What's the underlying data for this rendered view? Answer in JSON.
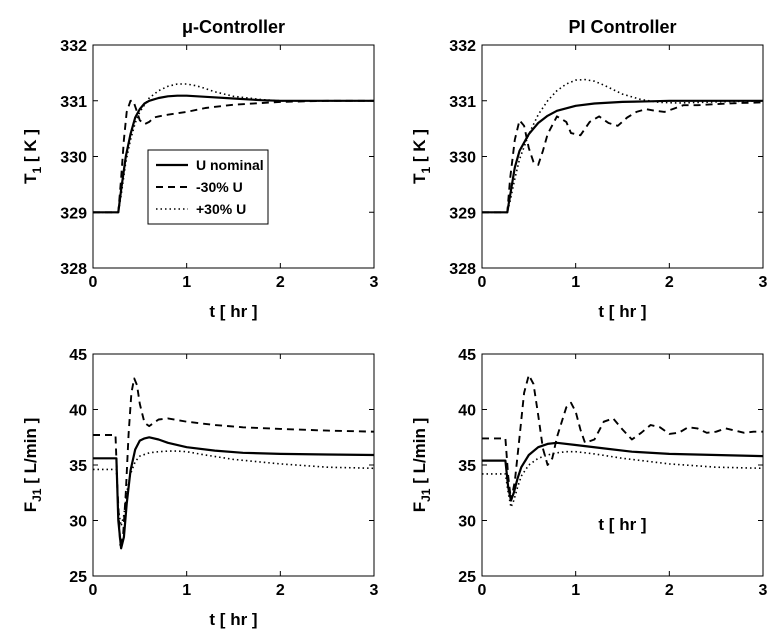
{
  "chart_data": [
    {
      "type": "line",
      "title": "μ-Controller",
      "xlabel": "t [ hr ]",
      "ylabel": "T_1 [ K ]",
      "ylabel_main": "T",
      "ylabel_sub": "1",
      "ylabel_rest": " [ K ]",
      "xlim": [
        0,
        3
      ],
      "ylim": [
        328,
        332
      ],
      "xticks": [
        "0",
        "1",
        "2",
        "3"
      ],
      "yticks": [
        "328",
        "329",
        "330",
        "331",
        "332"
      ],
      "legend": {
        "position": "center-left"
      },
      "series": [
        {
          "name": "U nominal",
          "style": "solid",
          "x": [
            0,
            0.27,
            0.3,
            0.35,
            0.4,
            0.45,
            0.5,
            0.55,
            0.6,
            0.7,
            0.8,
            0.9,
            1.0,
            1.2,
            1.5,
            1.8,
            2.0,
            2.5,
            3.0
          ],
          "y": [
            329,
            329,
            329.4,
            330.0,
            330.4,
            330.7,
            330.85,
            330.95,
            331.0,
            331.05,
            331.08,
            331.09,
            331.09,
            331.07,
            331.04,
            331.01,
            331.0,
            331.0,
            331.0
          ]
        },
        {
          "name": "-30% U",
          "style": "dashed",
          "x": [
            0,
            0.27,
            0.3,
            0.33,
            0.36,
            0.4,
            0.43,
            0.46,
            0.5,
            0.55,
            0.6,
            0.65,
            0.7,
            0.8,
            1.0,
            1.2,
            1.5,
            2.0,
            2.5,
            3.0
          ],
          "y": [
            329,
            329,
            329.6,
            330.3,
            330.8,
            331.0,
            331.0,
            330.85,
            330.65,
            330.58,
            330.62,
            330.7,
            330.72,
            330.75,
            330.8,
            330.87,
            330.93,
            330.98,
            331.0,
            331.0
          ]
        },
        {
          "name": "+30% U",
          "style": "dotted",
          "x": [
            0,
            0.27,
            0.3,
            0.35,
            0.4,
            0.45,
            0.5,
            0.6,
            0.7,
            0.8,
            0.9,
            1.0,
            1.1,
            1.2,
            1.3,
            1.5,
            1.8,
            2.0,
            2.5,
            3.0
          ],
          "y": [
            329,
            329,
            329.3,
            329.9,
            330.3,
            330.6,
            330.8,
            331.05,
            331.18,
            331.26,
            331.3,
            331.3,
            331.27,
            331.22,
            331.16,
            331.08,
            331.02,
            331.0,
            331.0,
            331.0
          ]
        }
      ]
    },
    {
      "type": "line",
      "title": "PI Controller",
      "xlabel": "t [ hr ]",
      "ylabel": "T_1 [ K ]",
      "ylabel_main": "T",
      "ylabel_sub": "1",
      "ylabel_rest": " [ K ]",
      "xlim": [
        0,
        3
      ],
      "ylim": [
        328,
        332
      ],
      "xticks": [
        "0",
        "1",
        "2",
        "3"
      ],
      "yticks": [
        "328",
        "329",
        "330",
        "331",
        "332"
      ],
      "series": [
        {
          "name": "U nominal",
          "style": "solid",
          "x": [
            0,
            0.27,
            0.3,
            0.35,
            0.4,
            0.5,
            0.6,
            0.7,
            0.8,
            1.0,
            1.2,
            1.5,
            1.8,
            2.0,
            2.5,
            3.0
          ],
          "y": [
            329,
            329,
            329.3,
            329.8,
            330.1,
            330.4,
            330.6,
            330.73,
            330.82,
            330.91,
            330.95,
            330.98,
            330.99,
            331.0,
            331.0,
            331.0
          ]
        },
        {
          "name": "-30% U",
          "style": "dashed",
          "x": [
            0,
            0.27,
            0.3,
            0.35,
            0.4,
            0.45,
            0.5,
            0.55,
            0.6,
            0.65,
            0.7,
            0.8,
            0.9,
            0.95,
            1.05,
            1.15,
            1.25,
            1.35,
            1.45,
            1.55,
            1.65,
            1.75,
            1.85,
            1.95,
            2.05,
            2.15,
            2.3,
            2.5,
            2.75,
            3.0
          ],
          "y": [
            329,
            329,
            329.6,
            330.3,
            330.65,
            330.55,
            330.15,
            329.9,
            329.85,
            330.1,
            330.4,
            330.72,
            330.62,
            330.42,
            330.38,
            330.62,
            330.72,
            330.6,
            330.55,
            330.7,
            330.8,
            330.85,
            330.82,
            330.8,
            330.86,
            330.92,
            330.92,
            330.94,
            330.96,
            330.97
          ]
        },
        {
          "name": "+30% U",
          "style": "dotted",
          "x": [
            0,
            0.27,
            0.3,
            0.35,
            0.4,
            0.5,
            0.6,
            0.7,
            0.8,
            0.9,
            1.0,
            1.1,
            1.2,
            1.3,
            1.4,
            1.5,
            1.7,
            1.9,
            2.1,
            2.5,
            3.0
          ],
          "y": [
            329,
            329,
            329.2,
            329.6,
            329.95,
            330.4,
            330.75,
            331.0,
            331.18,
            331.3,
            331.37,
            331.38,
            331.35,
            331.28,
            331.2,
            331.12,
            331.02,
            330.97,
            330.96,
            330.98,
            331.0
          ]
        }
      ]
    },
    {
      "type": "line",
      "title": "",
      "xlabel": "t [ hr ]",
      "ylabel": "F_J1 [ L/min ]",
      "ylabel_main": "F",
      "ylabel_sub": "J1",
      "ylabel_rest": " [ L/min ]",
      "xlim": [
        0,
        3
      ],
      "ylim": [
        25,
        45
      ],
      "xticks": [
        "0",
        "1",
        "2",
        "3"
      ],
      "yticks": [
        "25",
        "30",
        "35",
        "40",
        "45"
      ],
      "series": [
        {
          "name": "U nominal",
          "style": "solid",
          "x": [
            0,
            0.25,
            0.27,
            0.3,
            0.33,
            0.36,
            0.4,
            0.45,
            0.5,
            0.55,
            0.6,
            0.7,
            0.8,
            1.0,
            1.3,
            1.6,
            2.0,
            2.5,
            3.0
          ],
          "y": [
            35.6,
            35.6,
            30,
            27.5,
            28.5,
            31.5,
            34.5,
            36.4,
            37.2,
            37.4,
            37.5,
            37.3,
            37.0,
            36.6,
            36.3,
            36.1,
            36.0,
            35.95,
            35.9
          ]
        },
        {
          "name": "-30% U",
          "style": "dashed",
          "x": [
            0,
            0.24,
            0.26,
            0.29,
            0.32,
            0.35,
            0.38,
            0.41,
            0.44,
            0.47,
            0.5,
            0.55,
            0.6,
            0.65,
            0.7,
            0.8,
            1.0,
            1.3,
            1.6,
            2.0,
            2.5,
            3.0
          ],
          "y": [
            37.7,
            37.7,
            33,
            27.8,
            28.5,
            32.5,
            37.8,
            41.5,
            42.8,
            42.2,
            40.5,
            38.8,
            38.5,
            38.8,
            39.1,
            39.2,
            38.9,
            38.6,
            38.4,
            38.25,
            38.1,
            38.0
          ]
        },
        {
          "name": "+30% U",
          "style": "dotted",
          "x": [
            0,
            0.25,
            0.27,
            0.3,
            0.33,
            0.36,
            0.4,
            0.45,
            0.5,
            0.6,
            0.7,
            0.8,
            0.9,
            1.0,
            1.2,
            1.5,
            2.0,
            2.5,
            3.0
          ],
          "y": [
            34.6,
            34.6,
            31,
            29.5,
            30.5,
            32.5,
            34.2,
            35.3,
            35.8,
            36.1,
            36.2,
            36.25,
            36.25,
            36.2,
            35.9,
            35.5,
            35.1,
            34.8,
            34.7
          ]
        }
      ]
    },
    {
      "type": "line",
      "title": "",
      "xlabel": "t [ hr ]",
      "ylabel": "F_J1 [ L/min ]",
      "ylabel_main": "F",
      "ylabel_sub": "J1",
      "ylabel_rest": " [ L/min ]",
      "xlim": [
        0,
        3
      ],
      "ylim": [
        25,
        45
      ],
      "xticks": [
        "0",
        "1",
        "2",
        "3"
      ],
      "yticks": [
        "25",
        "30",
        "35",
        "40",
        "45"
      ],
      "series": [
        {
          "name": "U nominal",
          "style": "solid",
          "x": [
            0,
            0.25,
            0.28,
            0.31,
            0.34,
            0.38,
            0.42,
            0.5,
            0.6,
            0.7,
            0.8,
            1.0,
            1.3,
            1.6,
            2.0,
            2.5,
            3.0
          ],
          "y": [
            35.4,
            35.4,
            33,
            31.8,
            32.5,
            33.8,
            34.8,
            35.9,
            36.6,
            36.9,
            37.0,
            36.8,
            36.5,
            36.2,
            36.0,
            35.9,
            35.8
          ]
        },
        {
          "name": "-30% U",
          "style": "dashed",
          "x": [
            0,
            0.25,
            0.28,
            0.31,
            0.35,
            0.4,
            0.45,
            0.5,
            0.55,
            0.6,
            0.65,
            0.7,
            0.75,
            0.8,
            0.9,
            0.95,
            1.0,
            1.05,
            1.1,
            1.2,
            1.3,
            1.4,
            1.5,
            1.6,
            1.7,
            1.8,
            1.9,
            2.0,
            2.1,
            2.2,
            2.3,
            2.4,
            2.5,
            2.6,
            2.7,
            2.8,
            2.9,
            3.0
          ],
          "y": [
            37.4,
            37.4,
            34,
            31.8,
            33.5,
            37.5,
            41.5,
            43.1,
            42.3,
            39.5,
            36.5,
            35.0,
            35.6,
            37.5,
            40.2,
            40.6,
            39.8,
            38.2,
            37.0,
            37.3,
            38.9,
            39.2,
            38.2,
            37.3,
            37.9,
            38.6,
            38.4,
            37.8,
            37.9,
            38.4,
            38.3,
            37.9,
            38.0,
            38.3,
            38.1,
            37.9,
            38.0,
            38.0
          ]
        },
        {
          "name": "+30% U",
          "style": "dotted",
          "x": [
            0,
            0.25,
            0.28,
            0.31,
            0.34,
            0.38,
            0.42,
            0.5,
            0.6,
            0.7,
            0.8,
            0.9,
            1.0,
            1.2,
            1.5,
            2.0,
            2.5,
            3.0
          ],
          "y": [
            34.2,
            34.2,
            32.5,
            31.2,
            31.8,
            33.0,
            34.0,
            35.0,
            35.6,
            35.9,
            36.1,
            36.2,
            36.2,
            36.0,
            35.6,
            35.1,
            34.8,
            34.7
          ]
        }
      ]
    }
  ]
}
